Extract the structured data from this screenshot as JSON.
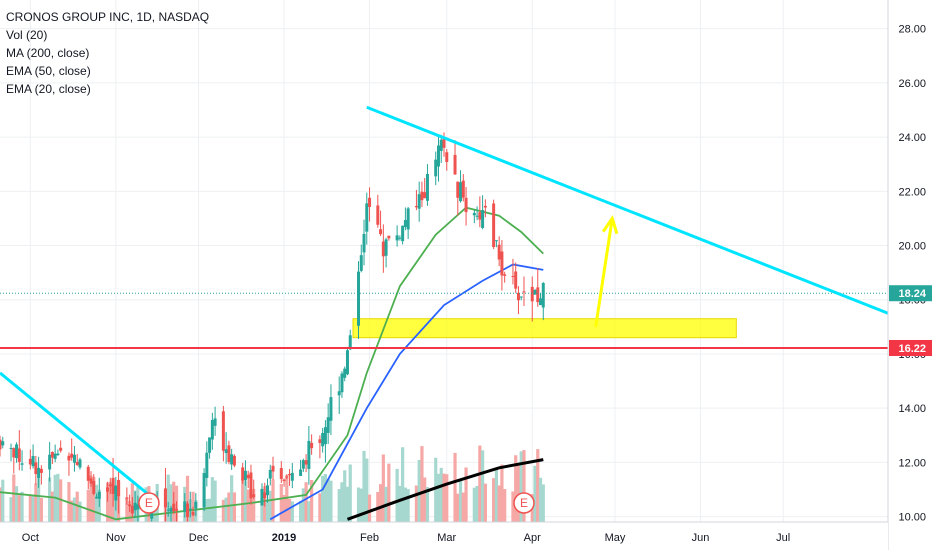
{
  "legend": {
    "symbol_line": "CRONOS GROUP INC, 1D, NASDAQ",
    "vol_line": "Vol (20)",
    "ma200_line": "MA (200, close)",
    "ema50_line": "EMA (50, close)",
    "ema20_line": "EMA (20, close)"
  },
  "chart_data": {
    "type": "candlestick",
    "symbol": "CRONOS GROUP INC",
    "interval": "1D",
    "exchange": "NASDAQ",
    "y_axis": {
      "position": "right",
      "ticks": [
        10.0,
        12.0,
        14.0,
        16.0,
        18.0,
        20.0,
        22.0,
        24.0,
        26.0,
        28.0
      ],
      "tick_labels": [
        "10.00",
        "12.00",
        "14.00",
        "16.00",
        "18.00",
        "20.00",
        "22.00",
        "24.00",
        "26.00",
        "28.00"
      ],
      "range": [
        9.8,
        28.8
      ]
    },
    "x_axis": {
      "labels": [
        "Oct",
        "Nov",
        "Dec",
        "2019",
        "Feb",
        "Mar",
        "Apr",
        "May",
        "Jun",
        "Jul"
      ],
      "label_dates": [
        "2018-10-01",
        "2018-11-01",
        "2018-12-01",
        "2019-01-01",
        "2019-02-01",
        "2019-03-01",
        "2019-04-01",
        "2019-05-01",
        "2019-06-01",
        "2019-07-01"
      ],
      "range": [
        "2018-09-20",
        "2019-08-08"
      ]
    },
    "price_labels": [
      {
        "value": 18.24,
        "text": "18.24",
        "color": "#26a69a"
      },
      {
        "value": 16.22,
        "text": "16.22",
        "color": "#f23645"
      }
    ],
    "candles_sample": [
      {
        "date": "2019-01-30",
        "open": 18.2,
        "close": 22.0,
        "high": 25.1,
        "low": 17.9
      },
      {
        "date": "2019-02-27",
        "open": 22.5,
        "close": 24.0,
        "high": 24.4,
        "low": 21.9
      },
      {
        "date": "2019-03-28",
        "open": 18.0,
        "close": 17.4,
        "high": 18.8,
        "low": 17.1
      },
      {
        "date": "2019-04-05",
        "open": 18.0,
        "close": 18.24,
        "high": 18.6,
        "low": 17.8
      }
    ],
    "horizontal_line": {
      "value": 16.22,
      "color": "#f23645"
    },
    "support_zone": {
      "from": 16.6,
      "to": 17.3,
      "start_date": "2019-01-26",
      "end_date": "2019-06-14",
      "color": "#ffff00"
    },
    "trendlines": [
      {
        "name": "",
        "color": "#00e5ff",
        "points": [
          {
            "date": "2019-01-31",
            "value": 25.1
          },
          {
            "date": "2019-08-08",
            "value": 17.5
          }
        ]
      },
      {
        "name": "",
        "color": "#00e5ff",
        "points": [
          {
            "date": "2018-09-20",
            "value": 15.3
          },
          {
            "date": "2018-11-13",
            "value": 10.8
          }
        ]
      }
    ],
    "projection_arrow": {
      "color": "#ffff00",
      "from": {
        "date": "2019-04-24",
        "value": 17.0
      },
      "to": {
        "date": "2019-04-30",
        "value": 21.0
      }
    },
    "moving_averages": [
      {
        "name": "MA (200, close)",
        "color": "#000000",
        "points": [
          [
            "2019-01-24",
            9.9
          ],
          [
            "2019-02-12",
            10.6
          ],
          [
            "2019-03-01",
            11.2
          ],
          [
            "2019-03-20",
            11.8
          ],
          [
            "2019-04-05",
            12.1
          ]
        ]
      },
      {
        "name": "EMA (50, close)",
        "color": "#2962ff",
        "points": [
          [
            "2018-12-27",
            9.9
          ],
          [
            "2019-01-15",
            11.0
          ],
          [
            "2019-01-31",
            14.0
          ],
          [
            "2019-02-12",
            16.0
          ],
          [
            "2019-02-28",
            17.8
          ],
          [
            "2019-03-14",
            18.7
          ],
          [
            "2019-03-25",
            19.3
          ],
          [
            "2019-04-05",
            19.1
          ]
        ]
      },
      {
        "name": "EMA (20, close)",
        "color": "#4caf50",
        "points": [
          [
            "2018-09-20",
            10.9
          ],
          [
            "2018-10-10",
            10.7
          ],
          [
            "2018-11-01",
            9.9
          ],
          [
            "2018-12-20",
            10.5
          ],
          [
            "2019-01-09",
            10.8
          ],
          [
            "2019-01-24",
            13.0
          ],
          [
            "2019-01-31",
            15.3
          ],
          [
            "2019-02-12",
            18.5
          ],
          [
            "2019-02-25",
            20.4
          ],
          [
            "2019-03-08",
            21.4
          ],
          [
            "2019-03-20",
            21.1
          ],
          [
            "2019-03-28",
            20.5
          ],
          [
            "2019-04-05",
            19.7
          ]
        ]
      }
    ],
    "earnings_markers": [
      {
        "date": "2018-11-13",
        "text": "E"
      },
      {
        "date": "2019-03-29",
        "text": "E"
      }
    ],
    "volume": {
      "label": "Vol (20)",
      "note": "volume bars shown at bottom of chart"
    },
    "colors": {
      "up": "#26a69a",
      "down": "#ef5350",
      "grid": "#eef0f3",
      "background": "#ffffff"
    }
  }
}
